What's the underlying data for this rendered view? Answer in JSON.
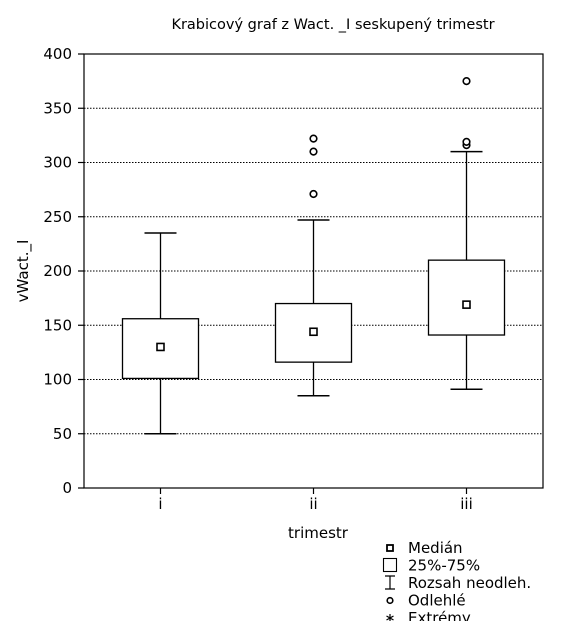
{
  "chart_data": {
    "type": "box",
    "title": "Krabicový graf z Wact. _I seskupený trimestr",
    "xlabel": "trimestr",
    "ylabel": "vWact._I",
    "ylim": [
      0,
      400
    ],
    "yticks": [
      0,
      50,
      100,
      150,
      200,
      250,
      300,
      350,
      400
    ],
    "grid": true,
    "categories": [
      "i",
      "ii",
      "iii"
    ],
    "boxes": [
      {
        "category": "i",
        "median": 130,
        "q1": 101,
        "q3": 156,
        "whisker_low": 50,
        "whisker_high": 235,
        "outliers": []
      },
      {
        "category": "ii",
        "median": 144,
        "q1": 116,
        "q3": 170,
        "whisker_low": 85,
        "whisker_high": 247,
        "outliers": [
          271,
          310,
          322
        ]
      },
      {
        "category": "iii",
        "median": 169,
        "q1": 141,
        "q3": 210,
        "whisker_low": 91,
        "whisker_high": 310,
        "outliers": [
          316,
          319,
          375
        ]
      }
    ],
    "legend": {
      "position": "bottom-right",
      "items": [
        {
          "symbol": "median-square",
          "label": "Medián"
        },
        {
          "symbol": "box",
          "label": "25%-75%"
        },
        {
          "symbol": "whisker",
          "label": "Rozsah  neodleh."
        },
        {
          "symbol": "circle",
          "label": "Odlehlé"
        },
        {
          "symbol": "asterisk",
          "label": "Extrémy"
        }
      ]
    }
  }
}
